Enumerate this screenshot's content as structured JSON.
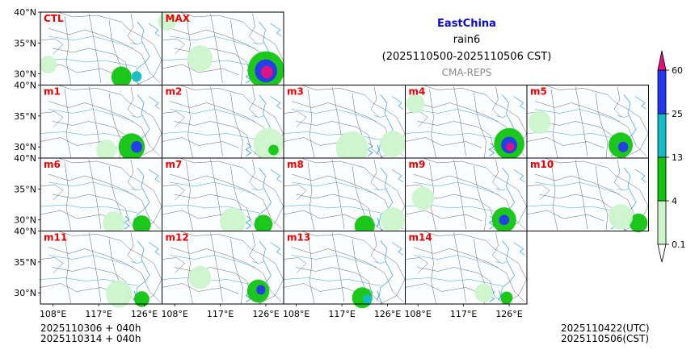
{
  "header": {
    "region": "EastChina",
    "variable": "rain6",
    "period": "(2025110500-2025110506 CST)",
    "model": "CMA-REPS"
  },
  "footer": {
    "init_utc_line": "2025110306  +  040h",
    "init_cst_line": "2025110314  +  040h",
    "valid_utc": "2025110422(UTC)",
    "valid_cst": "2025110506(CST)"
  },
  "colors": {
    "title": "#0a0ad0",
    "member_label": "#ee0000",
    "model_label": "#8a8a8a",
    "river": "#3d9fe0",
    "boundary": "#555555"
  },
  "chart_data": {
    "type": "heatmap",
    "title": "EastChina rain6 (2025110500-2025110506 CST) CMA-REPS",
    "x_ticks": [
      "108°E",
      "117°E",
      "126°E"
    ],
    "y_ticks": [
      "40°N",
      "35°N",
      "30°N"
    ],
    "xlim": [
      105.5,
      129.5
    ],
    "ylim": [
      28.2,
      40.0
    ],
    "colorbar": {
      "levels": [
        0.1,
        4,
        13,
        25,
        60
      ],
      "labels": [
        "0.1",
        "4",
        "13",
        "25",
        "60"
      ],
      "colors": [
        "#ccf5cc",
        "#11c511",
        "#13bcc6",
        "#2438f2"
      ],
      "over_color": "#e8117a",
      "under_color": "#ffffff",
      "extend": "both"
    },
    "panels": [
      {
        "label": "CTL",
        "rain": [
          {
            "lon": 121.5,
            "lat": 29.5,
            "mm": 4,
            "r": 2.0
          },
          {
            "lon": 124.5,
            "lat": 29.6,
            "mm": 13,
            "r": 1.0
          },
          {
            "lon": 107.0,
            "lat": 31.5,
            "mm": 0.1,
            "r": 1.7
          }
        ]
      },
      {
        "label": "MAX",
        "rain": [
          {
            "lon": 126.0,
            "lat": 30.6,
            "mm": 4,
            "r": 3.6
          },
          {
            "lon": 126.0,
            "lat": 30.5,
            "mm": 25,
            "r": 2.2
          },
          {
            "lon": 126.2,
            "lat": 30.3,
            "mm": 60,
            "r": 1.2
          },
          {
            "lon": 113.0,
            "lat": 32.5,
            "mm": 0.1,
            "r": 2.5
          },
          {
            "lon": 106.5,
            "lat": 38.5,
            "mm": 0.1,
            "r": 1.8
          }
        ]
      },
      {
        "label": "m1",
        "rain": [
          {
            "lon": 123.5,
            "lat": 30.0,
            "mm": 4,
            "r": 2.6
          },
          {
            "lon": 124.5,
            "lat": 30.0,
            "mm": 25,
            "r": 1.1
          },
          {
            "lon": 118.5,
            "lat": 29.5,
            "mm": 0.1,
            "r": 2.0
          }
        ]
      },
      {
        "label": "m2",
        "rain": [
          {
            "lon": 126.5,
            "lat": 30.5,
            "mm": 0.1,
            "r": 3.0
          },
          {
            "lon": 127.5,
            "lat": 29.5,
            "mm": 4,
            "r": 1.0
          }
        ]
      },
      {
        "label": "m3",
        "rain": [
          {
            "lon": 119.0,
            "lat": 29.8,
            "mm": 0.1,
            "r": 3.2
          },
          {
            "lon": 127.0,
            "lat": 30.5,
            "mm": 0.1,
            "r": 2.5
          }
        ]
      },
      {
        "label": "m4",
        "rain": [
          {
            "lon": 126.0,
            "lat": 30.5,
            "mm": 4,
            "r": 3.0
          },
          {
            "lon": 126.0,
            "lat": 30.3,
            "mm": 25,
            "r": 1.6
          },
          {
            "lon": 126.2,
            "lat": 30.0,
            "mm": 60,
            "r": 0.8
          },
          {
            "lon": 107.5,
            "lat": 37.0,
            "mm": 0.1,
            "r": 1.8
          }
        ]
      },
      {
        "label": "m5",
        "rain": [
          {
            "lon": 124.0,
            "lat": 30.3,
            "mm": 4,
            "r": 2.4
          },
          {
            "lon": 124.5,
            "lat": 30.0,
            "mm": 25,
            "r": 1.0
          },
          {
            "lon": 108.0,
            "lat": 34.0,
            "mm": 0.1,
            "r": 2.2
          }
        ]
      },
      {
        "label": "m6",
        "rain": [
          {
            "lon": 125.5,
            "lat": 29.2,
            "mm": 4,
            "r": 1.8
          },
          {
            "lon": 120.0,
            "lat": 29.5,
            "mm": 0.1,
            "r": 2.2
          }
        ]
      },
      {
        "label": "m7",
        "rain": [
          {
            "lon": 125.5,
            "lat": 29.3,
            "mm": 4,
            "r": 1.8
          },
          {
            "lon": 119.5,
            "lat": 29.8,
            "mm": 0.1,
            "r": 2.6
          }
        ]
      },
      {
        "label": "m8",
        "rain": [
          {
            "lon": 121.5,
            "lat": 29.0,
            "mm": 4,
            "r": 2.0
          },
          {
            "lon": 127.0,
            "lat": 30.0,
            "mm": 0.1,
            "r": 2.4
          }
        ]
      },
      {
        "label": "m9",
        "rain": [
          {
            "lon": 125.0,
            "lat": 30.0,
            "mm": 4,
            "r": 2.4
          },
          {
            "lon": 125.0,
            "lat": 30.0,
            "mm": 25,
            "r": 1.0
          },
          {
            "lon": 109.0,
            "lat": 33.5,
            "mm": 0.1,
            "r": 2.2
          }
        ]
      },
      {
        "label": "m10",
        "rain": [
          {
            "lon": 127.5,
            "lat": 29.5,
            "mm": 4,
            "r": 1.8
          },
          {
            "lon": 124.0,
            "lat": 30.5,
            "mm": 0.1,
            "r": 2.4
          }
        ]
      },
      {
        "label": "m11",
        "rain": [
          {
            "lon": 125.5,
            "lat": 29.0,
            "mm": 4,
            "r": 1.5
          },
          {
            "lon": 121.0,
            "lat": 29.8,
            "mm": 0.1,
            "r": 2.6
          }
        ]
      },
      {
        "label": "m12",
        "rain": [
          {
            "lon": 124.5,
            "lat": 30.3,
            "mm": 4,
            "r": 2.2
          },
          {
            "lon": 125.0,
            "lat": 30.5,
            "mm": 25,
            "r": 0.9
          },
          {
            "lon": 113.0,
            "lat": 32.5,
            "mm": 0.1,
            "r": 2.2
          }
        ]
      },
      {
        "label": "m13",
        "rain": [
          {
            "lon": 121.0,
            "lat": 29.2,
            "mm": 4,
            "r": 2.0
          },
          {
            "lon": 122.0,
            "lat": 29.0,
            "mm": 13,
            "r": 0.9
          }
        ]
      },
      {
        "label": "m14",
        "rain": [
          {
            "lon": 125.5,
            "lat": 29.2,
            "mm": 4,
            "r": 1.2
          },
          {
            "lon": 121.0,
            "lat": 30.0,
            "mm": 0.1,
            "r": 1.8
          }
        ]
      }
    ]
  }
}
